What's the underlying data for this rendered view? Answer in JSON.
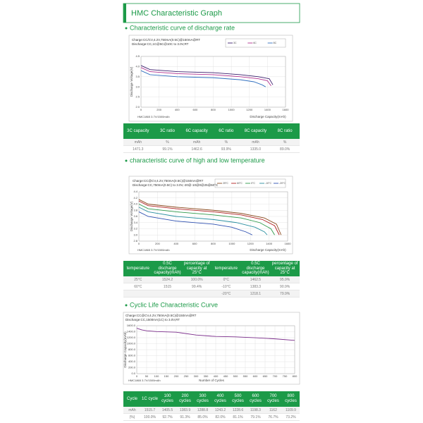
{
  "title": "HMC Characteristic Graph",
  "sections": [
    {
      "heading": "Characteristic curve of discharge rate"
    },
    {
      "heading": "characteristic curve of high and low temperature"
    },
    {
      "heading": "Cyclic Life Characteristic Curve"
    }
  ],
  "chart_data": [
    {
      "type": "line",
      "annotations": [
        "Charge:CC/CV,4.2V,750mA(0.5C)@150mA@RT",
        "Discharge:CC,1C@5C@10C to 3.0V,RT"
      ],
      "note": "HMC1865 3.7V/1500mAh",
      "x_label": "Discharge Capacity(mAh)",
      "y_label": "Discharge Voltage(V)",
      "xlim": [
        0,
        1600
      ],
      "ylim": [
        2.0,
        4.5
      ],
      "xticks": [
        0,
        200,
        400,
        600,
        800,
        1000,
        1200,
        1400,
        1600
      ],
      "yticks": [
        {
          "value": 2,
          "label": "2.0"
        },
        2.5,
        {
          "value": 3,
          "label": "3.0"
        },
        3.5,
        {
          "value": 4,
          "label": "4.0"
        },
        4.5
      ],
      "grid": true,
      "series": [
        {
          "name": "3C",
          "color": "#3b1f6e",
          "x": [
            0,
            100,
            400,
            800,
            1100,
            1300,
            1420,
            1460
          ],
          "values": [
            4.05,
            3.85,
            3.75,
            3.7,
            3.6,
            3.5,
            3.4,
            3.1
          ]
        },
        {
          "name": "6C",
          "color": "#b0308f",
          "x": [
            0,
            100,
            400,
            800,
            1100,
            1300,
            1400,
            1440
          ],
          "values": [
            3.95,
            3.75,
            3.65,
            3.6,
            3.5,
            3.4,
            3.3,
            3.05
          ]
        },
        {
          "name": "8C",
          "color": "#2f6fbf",
          "x": [
            0,
            100,
            400,
            800,
            1100,
            1250,
            1340,
            1380
          ],
          "values": [
            3.8,
            3.6,
            3.5,
            3.45,
            3.35,
            3.25,
            3.1,
            3.0
          ]
        }
      ]
    },
    {
      "type": "line",
      "annotations": [
        "Charge:CC@CV,4.2V,750mA(0.5C)@150mA@RT",
        "Discharge:CC,750mA(0.5C) to 3.0V,-20@-10@0@25@60°C"
      ],
      "note": "HMC1865 3.7V/1500mAh",
      "x_label": "Discharge Capacity(mAh)",
      "y_label": "Discharge Voltage(V)",
      "xlim": [
        0,
        1600
      ],
      "ylim": [
        2.8,
        4.4
      ],
      "xticks": [
        0,
        200,
        400,
        600,
        800,
        1000,
        1200,
        1400,
        1600
      ],
      "yticks": [
        2.8,
        {
          "value": 3,
          "label": "3.0"
        },
        3.2,
        3.4,
        3.6,
        3.8,
        {
          "value": 4,
          "label": "4.0"
        },
        4.2,
        4.4
      ],
      "grid": true,
      "series": [
        {
          "name": "25°C",
          "color": "#8b4a1e",
          "x": [
            0,
            100,
            400,
            800,
            1100,
            1350,
            1480,
            1530
          ],
          "values": [
            4.15,
            4.0,
            3.9,
            3.8,
            3.7,
            3.55,
            3.35,
            3.0
          ]
        },
        {
          "name": "60°C",
          "color": "#b02020",
          "x": [
            0,
            100,
            400,
            800,
            1100,
            1330,
            1460,
            1510
          ],
          "values": [
            4.1,
            3.95,
            3.85,
            3.75,
            3.65,
            3.5,
            3.3,
            3.0
          ]
        },
        {
          "name": "0°C",
          "color": "#2e9a4a",
          "x": [
            0,
            100,
            400,
            800,
            1100,
            1300,
            1420,
            1460
          ],
          "values": [
            4.0,
            3.85,
            3.75,
            3.65,
            3.55,
            3.4,
            3.2,
            3.0
          ]
        },
        {
          "name": "-10°C",
          "color": "#2a8fa0",
          "x": [
            0,
            100,
            400,
            800,
            1050,
            1250,
            1350,
            1380
          ],
          "values": [
            3.9,
            3.75,
            3.6,
            3.5,
            3.4,
            3.25,
            3.1,
            3.0
          ]
        },
        {
          "name": "-20°C",
          "color": "#2d4fb0",
          "x": [
            0,
            100,
            400,
            800,
            1000,
            1150,
            1220
          ],
          "values": [
            3.75,
            3.6,
            3.45,
            3.35,
            3.25,
            3.1,
            3.0
          ]
        }
      ]
    },
    {
      "type": "line",
      "annotations": [
        "Charge:CC@CV,4.2V,750mA(0.5C)@150mA@RT",
        "Discharge:CC,1500mA(1C) to 3.0V,RT"
      ],
      "note": "HMC1865 3.7V/1500mAh",
      "x_label": "Number of Cycles",
      "y_label": "Discharge Capacity(mAh)",
      "xlim": [
        0,
        800
      ],
      "ylim": [
        0,
        1600
      ],
      "xticks": [
        0,
        50,
        100,
        150,
        200,
        250,
        300,
        350,
        400,
        450,
        500,
        550,
        600,
        650,
        700,
        750,
        800
      ],
      "yticks": [
        {
          "value": 0,
          "label": "0.0"
        },
        {
          "value": 200,
          "label": "200.0"
        },
        {
          "value": 400,
          "label": "400.0"
        },
        {
          "value": 600,
          "label": "600.0"
        },
        {
          "value": 800,
          "label": "800.0"
        },
        {
          "value": 1000,
          "label": "1000.0"
        },
        {
          "value": 1200,
          "label": "1200.0"
        },
        {
          "value": 1400,
          "label": "1400.0"
        },
        {
          "value": 1600,
          "label": "1600.0"
        }
      ],
      "grid": true,
      "series": [
        {
          "name": "capacity",
          "color": "#7b2d8b",
          "x": [
            0,
            25,
            50,
            100,
            200,
            300,
            380,
            400,
            500,
            600,
            700,
            800
          ],
          "values": [
            1515,
            1460,
            1430,
            1405,
            1384,
            1290,
            1250,
            1243,
            1229,
            1198,
            1162,
            1110
          ]
        }
      ]
    }
  ],
  "tables": [
    {
      "header": [
        "3C capacity",
        "3C ratio",
        "6C capacity",
        "6C ratio",
        "8C capacity",
        "8C ratio"
      ],
      "rows": [
        [
          "mAh",
          "%",
          "mAh",
          "%",
          "mAh",
          "%"
        ],
        [
          "1471.3",
          "99.1%",
          "1462.6",
          "93.9%",
          "1335.0",
          "89.0%"
        ]
      ]
    },
    {
      "header": [
        "temperature",
        "0.5C discharge capacity(mAh)",
        "percentage of capacity at 25°C",
        "temperature",
        "0.5C discharge capacity(mAh)",
        "percentage of capacity at 25°C"
      ],
      "rows": [
        [
          "25°C",
          "1524.2",
          "100.0%",
          "0°C",
          "1462.5",
          "95.9%"
        ],
        [
          "60°C",
          "1515",
          "99.4%",
          "-10°C",
          "1383.3",
          "90.9%"
        ],
        [
          "",
          "",
          "",
          "-20°C",
          "1218.1",
          "79.9%"
        ]
      ]
    },
    {
      "header": [
        "Cycle",
        "1C cycle",
        "100 cycles",
        "200 cycles",
        "300 cycles",
        "400 cycles",
        "500 cycles",
        "600 cycles",
        "700 cycles",
        "800 cycles"
      ],
      "rows": [
        [
          "mAh",
          "1515.7",
          "1405.5",
          "1383.9",
          "1288.8",
          "1243.2",
          "1228.6",
          "1198.3",
          "1162",
          "1109.9"
        ],
        [
          "(%)",
          "100.0%",
          "92.7%",
          "91.3%",
          "85.0%",
          "82.0%",
          "81.1%",
          "79.1%",
          "76.7%",
          "73.2%"
        ]
      ]
    }
  ]
}
